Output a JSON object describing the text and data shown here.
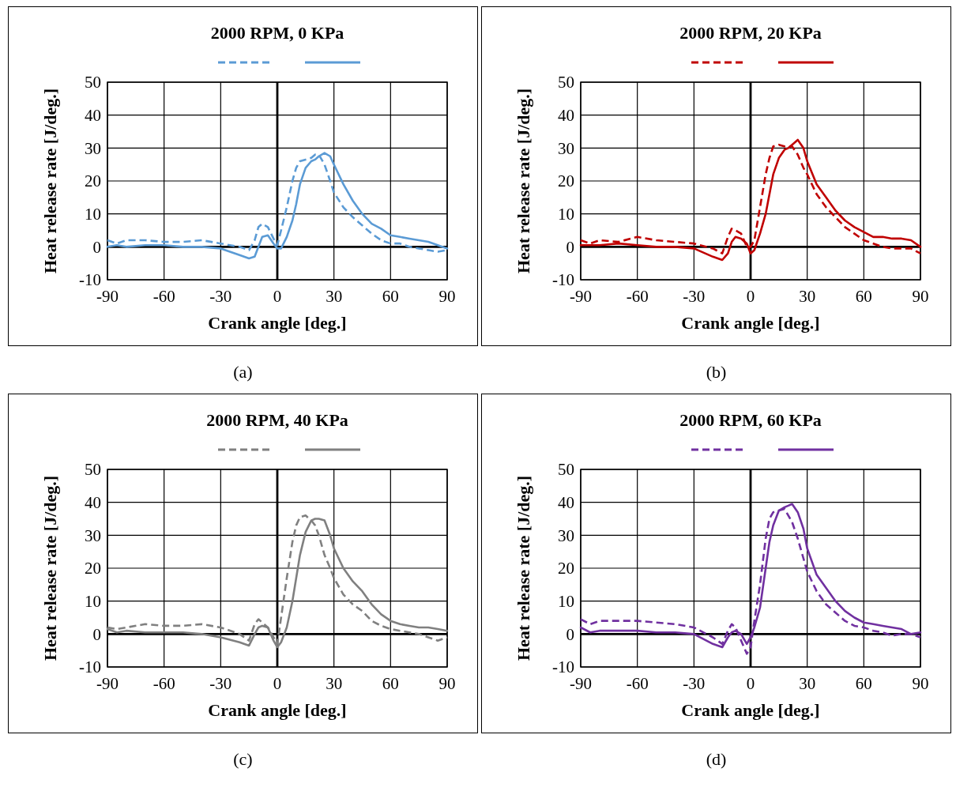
{
  "chart_data": [
    {
      "type": "line",
      "title": "2000 RPM, 0 KPa",
      "xlabel": "Crank angle [deg.]",
      "ylabel": "Heat release rate [J/deg.]",
      "annotations": [
        "(a)"
      ],
      "xlim": [
        -90,
        90
      ],
      "xticks": [
        -90,
        -60,
        -30,
        0,
        30,
        60,
        90
      ],
      "ylim": [
        -10,
        50
      ],
      "yticks": [
        -10,
        0,
        10,
        20,
        30,
        40,
        50
      ],
      "grid": true,
      "marker": "none",
      "x": [
        -90,
        -85,
        -80,
        -70,
        -60,
        -50,
        -40,
        -30,
        -20,
        -15,
        -12,
        -10,
        -8,
        -5,
        -2,
        0,
        2,
        5,
        8,
        10,
        12,
        15,
        18,
        20,
        22,
        25,
        28,
        30,
        35,
        40,
        45,
        50,
        55,
        60,
        65,
        70,
        75,
        80,
        85,
        90
      ],
      "series": [
        {
          "color": "#5b9bd5",
          "line_style": "dashed",
          "values": [
            2,
            1,
            2,
            2,
            1.5,
            1.5,
            2,
            1,
            0,
            -1,
            2,
            6,
            7,
            6,
            2.5,
            0.5,
            5,
            12,
            20,
            24,
            26,
            26.5,
            27,
            28,
            28,
            25,
            20,
            16.5,
            12,
            9,
            6.5,
            4,
            2,
            1,
            1,
            0,
            -0.5,
            -1,
            -1.5,
            -1
          ]
        },
        {
          "color": "#5b9bd5",
          "line_style": "solid",
          "values": [
            0,
            0.5,
            0,
            0.5,
            0.5,
            0,
            0,
            -0.5,
            -2.5,
            -3.5,
            -3,
            0,
            3,
            3.5,
            1,
            -0.5,
            -0.5,
            3,
            8,
            13,
            19,
            24,
            26,
            26.5,
            27.5,
            28.5,
            27.5,
            25,
            19,
            14,
            10,
            7,
            5.5,
            3.5,
            3,
            2.5,
            2,
            1.5,
            0.5,
            -0.5
          ]
        }
      ]
    },
    {
      "type": "line",
      "title": "2000 RPM, 20 KPa",
      "xlabel": "Crank angle [deg.]",
      "ylabel": "Heat release rate [J/deg.]",
      "annotations": [
        "(b)"
      ],
      "xlim": [
        -90,
        90
      ],
      "xticks": [
        -90,
        -60,
        -30,
        0,
        30,
        60,
        90
      ],
      "ylim": [
        -10,
        50
      ],
      "yticks": [
        -10,
        0,
        10,
        20,
        30,
        40,
        50
      ],
      "grid": true,
      "marker": "none",
      "x": [
        -90,
        -85,
        -80,
        -70,
        -60,
        -50,
        -40,
        -30,
        -20,
        -15,
        -12,
        -10,
        -8,
        -5,
        -2,
        0,
        2,
        5,
        8,
        10,
        12,
        15,
        18,
        20,
        22,
        25,
        28,
        30,
        35,
        40,
        45,
        50,
        55,
        60,
        65,
        70,
        75,
        80,
        85,
        90
      ],
      "series": [
        {
          "color": "#c00000",
          "line_style": "dashed",
          "values": [
            2,
            1,
            2,
            1.5,
            3,
            2,
            1.5,
            1,
            -0.5,
            -2,
            3,
            5.5,
            5,
            4,
            0,
            0,
            2,
            12,
            22,
            27,
            30.5,
            31,
            30.5,
            30.5,
            30.5,
            28,
            24,
            22,
            16,
            12,
            9,
            6,
            4,
            2,
            1,
            0,
            -0.5,
            -0.5,
            -0.5,
            -2
          ]
        },
        {
          "color": "#c00000",
          "line_style": "solid",
          "values": [
            0.5,
            0.5,
            0.5,
            1,
            0.5,
            0,
            0,
            -0.5,
            -3,
            -4,
            -2,
            1.5,
            3,
            2.5,
            1,
            -2,
            -1,
            4,
            10,
            16,
            22,
            27,
            29.5,
            30,
            31,
            32.5,
            30,
            26,
            19,
            15,
            11,
            8,
            6,
            4.5,
            3,
            3,
            2.5,
            2.5,
            2,
            0
          ]
        }
      ]
    },
    {
      "type": "line",
      "title": "2000 RPM, 40 KPa",
      "xlabel": "Crank angle [deg.]",
      "ylabel": "Heat release rate [J/deg.]",
      "annotations": [
        "(c)"
      ],
      "xlim": [
        -90,
        90
      ],
      "xticks": [
        -90,
        -60,
        -30,
        0,
        30,
        60,
        90
      ],
      "ylim": [
        -10,
        50
      ],
      "yticks": [
        -10,
        0,
        10,
        20,
        30,
        40,
        50
      ],
      "grid": true,
      "marker": "none",
      "x": [
        -90,
        -85,
        -80,
        -70,
        -60,
        -50,
        -40,
        -30,
        -20,
        -15,
        -12,
        -10,
        -8,
        -5,
        -2,
        0,
        2,
        5,
        8,
        10,
        12,
        15,
        18,
        20,
        22,
        25,
        28,
        30,
        35,
        40,
        45,
        50,
        55,
        60,
        65,
        70,
        75,
        80,
        85,
        90
      ],
      "series": [
        {
          "color": "#808080",
          "line_style": "dashed",
          "values": [
            2,
            1.5,
            2,
            3,
            2.5,
            2.5,
            3,
            2,
            0,
            -2,
            3,
            4.5,
            3.5,
            2,
            -1,
            -3,
            5,
            17,
            28,
            33,
            35.5,
            36,
            34.5,
            33,
            30,
            24,
            20,
            17,
            12,
            9,
            7,
            4,
            2.5,
            1.5,
            1,
            0.5,
            0,
            -1,
            -2,
            -1
          ]
        },
        {
          "color": "#808080",
          "line_style": "solid",
          "values": [
            1.5,
            0.5,
            1,
            0.5,
            0.5,
            0.5,
            0,
            -1,
            -2.5,
            -3.5,
            0,
            2,
            2.5,
            2,
            -2,
            -4,
            -2.5,
            2,
            10,
            17,
            24,
            31,
            34.5,
            35,
            35,
            34.5,
            30,
            26,
            20,
            16,
            13,
            9,
            6,
            4,
            3,
            2.5,
            2,
            2,
            1.5,
            1
          ]
        }
      ]
    },
    {
      "type": "line",
      "title": "2000 RPM, 60 KPa",
      "xlabel": "Crank angle [deg.]",
      "ylabel": "Heat release rate [J/deg.]",
      "annotations": [
        "(d)"
      ],
      "xlim": [
        -90,
        90
      ],
      "xticks": [
        -90,
        -60,
        -30,
        0,
        30,
        60,
        90
      ],
      "ylim": [
        -10,
        50
      ],
      "yticks": [
        -10,
        0,
        10,
        20,
        30,
        40,
        50
      ],
      "grid": true,
      "marker": "none",
      "x": [
        -90,
        -85,
        -80,
        -70,
        -60,
        -50,
        -40,
        -30,
        -20,
        -15,
        -12,
        -10,
        -8,
        -5,
        -2,
        0,
        2,
        5,
        8,
        10,
        12,
        15,
        18,
        20,
        22,
        25,
        28,
        30,
        35,
        40,
        45,
        50,
        55,
        60,
        65,
        70,
        75,
        80,
        85,
        90
      ],
      "series": [
        {
          "color": "#7030a0",
          "line_style": "dashed",
          "values": [
            4.5,
            3,
            4,
            4,
            4,
            3.5,
            3,
            2,
            -1,
            -3,
            1,
            3,
            2,
            -2,
            -6,
            -4,
            4,
            15,
            29,
            35,
            37,
            37.5,
            38,
            36,
            34,
            29,
            23,
            19,
            13,
            9,
            6.5,
            4,
            2.5,
            2,
            1,
            0.5,
            -0.5,
            0,
            0,
            -1
          ]
        },
        {
          "color": "#7030a0",
          "line_style": "solid",
          "values": [
            2,
            0.5,
            1,
            1,
            1,
            0.5,
            0.5,
            0,
            -3,
            -4,
            -1,
            0.5,
            1,
            0,
            -3,
            -1,
            2,
            8,
            20,
            28,
            33,
            37.5,
            38.5,
            39,
            39.5,
            37,
            32,
            26,
            18,
            14,
            10,
            7,
            5,
            3.5,
            3,
            2.5,
            2,
            1.5,
            0,
            0.5
          ]
        }
      ]
    }
  ]
}
